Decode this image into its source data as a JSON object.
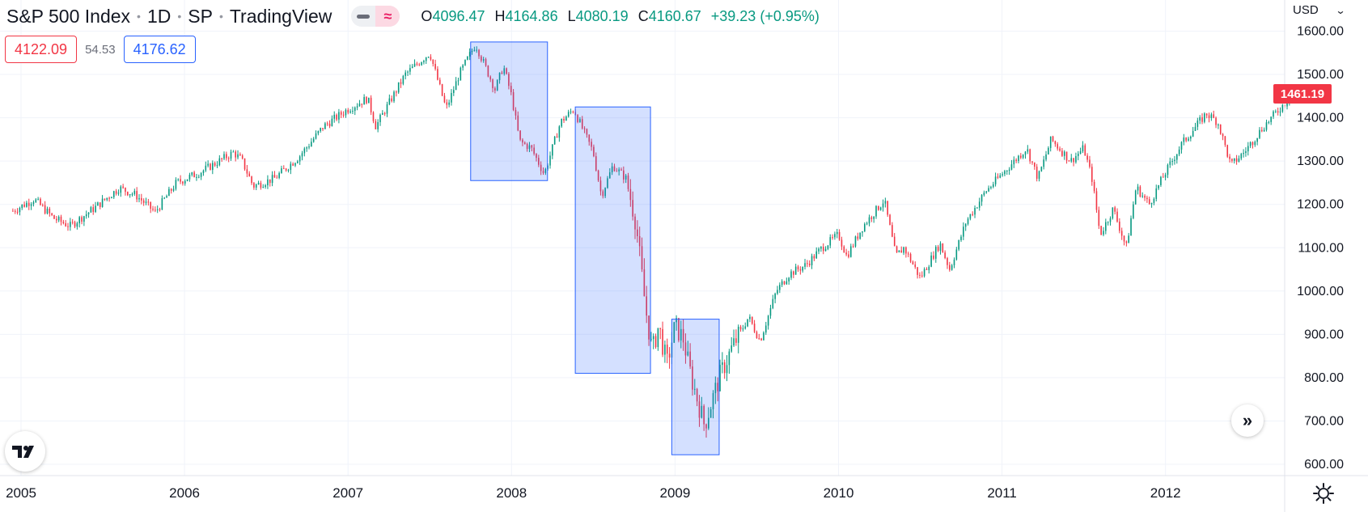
{
  "header": {
    "symbol_title": "S&P 500 Index",
    "interval": "1D",
    "exchange": "SP",
    "source": "TradingView",
    "ohlc": {
      "open_key": "O",
      "open": "4096.47",
      "high_key": "H",
      "high": "4164.86",
      "low_key": "L",
      "low": "4080.19",
      "close_key": "C",
      "close": "4160.67",
      "change": "+39.23 (+0.95%)"
    }
  },
  "trade": {
    "sell_price": "4122.09",
    "spread": "54.53",
    "buy_price": "4176.62"
  },
  "price_axis": {
    "currency": "USD",
    "ticks": [
      "1600.00",
      "1500.00",
      "1400.00",
      "1300.00",
      "1200.00",
      "1100.00",
      "1000.00",
      "900.00",
      "800.00",
      "700.00",
      "600.00"
    ],
    "last_price": "1461.19"
  },
  "time_axis": {
    "ticks": [
      "2005",
      "2006",
      "2007",
      "2008",
      "2009",
      "2010",
      "2011",
      "2012"
    ]
  },
  "icons": {
    "logo": "tradingview-logo-icon",
    "scroll": "chevron-double-right-icon",
    "settings": "gear-icon",
    "currency_menu": "chevron-down-icon"
  },
  "colors": {
    "up": "#089981",
    "down": "#f23645",
    "highlight_fill": "#2962ff",
    "highlight_stroke": "#2962ff",
    "grid": "#f0f3fa",
    "last_price_bg": "#f23645"
  },
  "chart_data": {
    "type": "line",
    "title": "S&P 500 Index",
    "style": "daily candlesticks",
    "x_range": [
      2004.95,
      2012.8
    ],
    "ylim": [
      600,
      1620
    ],
    "y_ticks": [
      600,
      700,
      800,
      900,
      1000,
      1100,
      1200,
      1300,
      1400,
      1500,
      1600
    ],
    "x_ticks": [
      2005,
      2006,
      2007,
      2008,
      2009,
      2010,
      2011,
      2012
    ],
    "grid": true,
    "price_series": [
      [
        2004.95,
        1185
      ],
      [
        2005.08,
        1212
      ],
      [
        2005.2,
        1168
      ],
      [
        2005.3,
        1150
      ],
      [
        2005.45,
        1192
      ],
      [
        2005.6,
        1238
      ],
      [
        2005.7,
        1222
      ],
      [
        2005.82,
        1182
      ],
      [
        2005.95,
        1250
      ],
      [
        2006.1,
        1275
      ],
      [
        2006.3,
        1320
      ],
      [
        2006.35,
        1302
      ],
      [
        2006.42,
        1242
      ],
      [
        2006.55,
        1260
      ],
      [
        2006.7,
        1310
      ],
      [
        2006.85,
        1380
      ],
      [
        2007.0,
        1420
      ],
      [
        2007.12,
        1445
      ],
      [
        2007.17,
        1380
      ],
      [
        2007.35,
        1500
      ],
      [
        2007.5,
        1550
      ],
      [
        2007.6,
        1420
      ],
      [
        2007.68,
        1500
      ],
      [
        2007.78,
        1570
      ],
      [
        2007.9,
        1465
      ],
      [
        2007.95,
        1520
      ],
      [
        2008.0,
        1450
      ],
      [
        2008.05,
        1345
      ],
      [
        2008.12,
        1330
      ],
      [
        2008.2,
        1270
      ],
      [
        2008.3,
        1390
      ],
      [
        2008.38,
        1420
      ],
      [
        2008.5,
        1320
      ],
      [
        2008.55,
        1220
      ],
      [
        2008.62,
        1290
      ],
      [
        2008.7,
        1260
      ],
      [
        2008.76,
        1160
      ],
      [
        2008.82,
        960
      ],
      [
        2008.86,
        860
      ],
      [
        2008.9,
        920
      ],
      [
        2008.95,
        830
      ],
      [
        2009.0,
        920
      ],
      [
        2009.05,
        890
      ],
      [
        2009.1,
        800
      ],
      [
        2009.18,
        690
      ],
      [
        2009.27,
        800
      ],
      [
        2009.35,
        870
      ],
      [
        2009.45,
        940
      ],
      [
        2009.52,
        885
      ],
      [
        2009.62,
        1000
      ],
      [
        2009.7,
        1040
      ],
      [
        2009.8,
        1060
      ],
      [
        2009.9,
        1100
      ],
      [
        2010.0,
        1130
      ],
      [
        2010.05,
        1080
      ],
      [
        2010.15,
        1150
      ],
      [
        2010.28,
        1210
      ],
      [
        2010.35,
        1080
      ],
      [
        2010.4,
        1100
      ],
      [
        2010.5,
        1030
      ],
      [
        2010.62,
        1110
      ],
      [
        2010.68,
        1050
      ],
      [
        2010.78,
        1160
      ],
      [
        2010.9,
        1230
      ],
      [
        2011.05,
        1290
      ],
      [
        2011.15,
        1330
      ],
      [
        2011.22,
        1260
      ],
      [
        2011.3,
        1350
      ],
      [
        2011.42,
        1300
      ],
      [
        2011.5,
        1330
      ],
      [
        2011.55,
        1260
      ],
      [
        2011.6,
        1130
      ],
      [
        2011.68,
        1190
      ],
      [
        2011.76,
        1100
      ],
      [
        2011.82,
        1240
      ],
      [
        2011.9,
        1200
      ],
      [
        2011.98,
        1260
      ],
      [
        2012.1,
        1340
      ],
      [
        2012.25,
        1410
      ],
      [
        2012.32,
        1390
      ],
      [
        2012.4,
        1290
      ],
      [
        2012.48,
        1320
      ],
      [
        2012.6,
        1380
      ],
      [
        2012.72,
        1430
      ],
      [
        2012.8,
        1461
      ]
    ],
    "highlight_boxes": [
      {
        "x": [
          2007.75,
          2008.22
        ],
        "y": [
          1255,
          1575
        ]
      },
      {
        "x": [
          2008.39,
          2008.85
        ],
        "y": [
          810,
          1425
        ]
      },
      {
        "x": [
          2008.98,
          2009.27
        ],
        "y": [
          622,
          935
        ]
      }
    ]
  }
}
